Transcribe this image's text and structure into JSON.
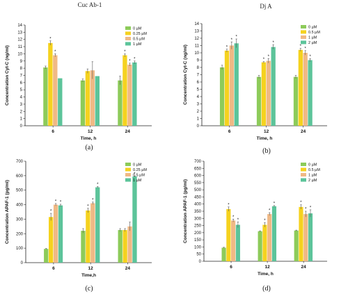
{
  "colors": {
    "0uM": "#8dcb5a",
    "low": "#f5d21f",
    "mid": "#f0b985",
    "high": "#5cc49a",
    "error": "#555555",
    "axis": "#222222"
  },
  "chart_data": [
    {
      "type": "bar",
      "panel": "a",
      "title": "Cuc Ab-1",
      "caption": "(a)",
      "xlabel": "Time, h",
      "ylabel": "Concentration Cyt-C (ng/ml)",
      "ylim": [
        0,
        14
      ],
      "yticks": [
        0,
        1,
        2,
        3,
        4,
        5,
        6,
        7,
        8,
        9,
        10,
        11,
        12,
        13,
        14
      ],
      "categories": [
        "6",
        "12",
        "24"
      ],
      "legend_position": "top-right",
      "series": [
        {
          "name": "0 µM",
          "color_key": "0uM",
          "values": [
            8.1,
            6.3,
            6.3
          ],
          "errors": [
            0.2,
            0.2,
            0.6
          ],
          "stars": [
            false,
            false,
            false
          ]
        },
        {
          "name": "0.25 µM",
          "color_key": "low",
          "values": [
            11.5,
            7.6,
            9.8
          ],
          "errors": [
            0.3,
            0.3,
            0.2
          ],
          "stars": [
            true,
            false,
            true
          ]
        },
        {
          "name": "0.5 µM",
          "color_key": "mid",
          "values": [
            9.8,
            7.7,
            8.5
          ],
          "errors": [
            0.2,
            1.2,
            0.2
          ],
          "stars": [
            true,
            false,
            true
          ]
        },
        {
          "name": "1 µM",
          "color_key": "high",
          "values": [
            6.6,
            6.9,
            8.8
          ],
          "errors": [
            0.0,
            0.0,
            0.2
          ],
          "stars": [
            false,
            false,
            true
          ]
        }
      ]
    },
    {
      "type": "bar",
      "panel": "b",
      "title": "Dj A",
      "caption": "(b)",
      "xlabel": "Time, h",
      "ylabel": "Concentration Cyt-C (ng/ml)",
      "ylim": [
        0,
        14
      ],
      "yticks": [
        0,
        1,
        2,
        3,
        4,
        5,
        6,
        7,
        8,
        9,
        10,
        11,
        12,
        13,
        14
      ],
      "categories": [
        "6",
        "12",
        "24"
      ],
      "legend_position": "top-right",
      "series": [
        {
          "name": "0 µM",
          "color_key": "0uM",
          "values": [
            8.0,
            6.7,
            6.7
          ],
          "errors": [
            0.3,
            0.2,
            0.2
          ],
          "stars": [
            false,
            false,
            false
          ]
        },
        {
          "name": "0.5 µM",
          "color_key": "low",
          "values": [
            10.3,
            8.7,
            10.4
          ],
          "errors": [
            0.2,
            0.1,
            0.2
          ],
          "stars": [
            true,
            true,
            true
          ]
        },
        {
          "name": "1 µM",
          "color_key": "mid",
          "values": [
            11.0,
            8.9,
            10.0
          ],
          "errors": [
            0.5,
            0.3,
            0.3
          ],
          "stars": [
            true,
            true,
            true
          ]
        },
        {
          "name": "2 µM",
          "color_key": "high",
          "values": [
            11.3,
            10.8,
            9.0
          ],
          "errors": [
            0.6,
            0.3,
            0.2
          ],
          "stars": [
            true,
            true,
            true
          ]
        }
      ]
    },
    {
      "type": "bar",
      "panel": "c",
      "title": "",
      "caption": "(c)",
      "xlabel": "Time,h",
      "ylabel": "Concentration APAF-1 (pg/ml)",
      "ylim": [
        0,
        700
      ],
      "yticks": [
        0,
        100,
        200,
        300,
        400,
        500,
        600,
        700
      ],
      "categories": [
        "6",
        "12",
        "24"
      ],
      "legend_position": "top-right",
      "series": [
        {
          "name": "0 µM",
          "color_key": "0uM",
          "values": [
            95,
            220,
            225
          ],
          "errors": [
            3,
            15,
            10
          ],
          "stars": [
            false,
            false,
            false
          ]
        },
        {
          "name": "0.25 µM",
          "color_key": "low",
          "values": [
            315,
            360,
            225
          ],
          "errors": [
            25,
            15,
            10
          ],
          "stars": [
            true,
            true,
            false
          ]
        },
        {
          "name": "0.5 µM",
          "color_key": "mid",
          "values": [
            400,
            410,
            250
          ],
          "errors": [
            8,
            8,
            30
          ],
          "stars": [
            true,
            true,
            false
          ]
        },
        {
          "name": "1 µM",
          "color_key": "high",
          "values": [
            395,
            520,
            595
          ],
          "errors": [
            8,
            5,
            3
          ],
          "stars": [
            true,
            true,
            true
          ]
        }
      ]
    },
    {
      "type": "bar",
      "panel": "d",
      "title": "",
      "caption": "(d)",
      "xlabel": "Time, h",
      "ylabel": "Concentration APAF-1 (pg/ml)",
      "ylim": [
        0,
        700
      ],
      "yticks": [
        0,
        50,
        100,
        150,
        200,
        250,
        300,
        350,
        400,
        450,
        500,
        550,
        600,
        650,
        700
      ],
      "categories": [
        "6",
        "12",
        "24"
      ],
      "legend_position": "top-right",
      "series": [
        {
          "name": "0 µM",
          "color_key": "0uM",
          "values": [
            95,
            210,
            215
          ],
          "errors": [
            3,
            3,
            3
          ],
          "stars": [
            false,
            false,
            false
          ]
        },
        {
          "name": "0.5 µM",
          "color_key": "low",
          "values": [
            365,
            255,
            380
          ],
          "errors": [
            15,
            15,
            15
          ],
          "stars": [
            true,
            true,
            true
          ]
        },
        {
          "name": "1 µM",
          "color_key": "mid",
          "values": [
            285,
            330,
            330
          ],
          "errors": [
            10,
            10,
            20
          ],
          "stars": [
            true,
            true,
            true
          ]
        },
        {
          "name": "2 µM",
          "color_key": "high",
          "values": [
            255,
            385,
            335
          ],
          "errors": [
            20,
            5,
            25
          ],
          "stars": [
            true,
            true,
            true
          ]
        }
      ]
    }
  ]
}
